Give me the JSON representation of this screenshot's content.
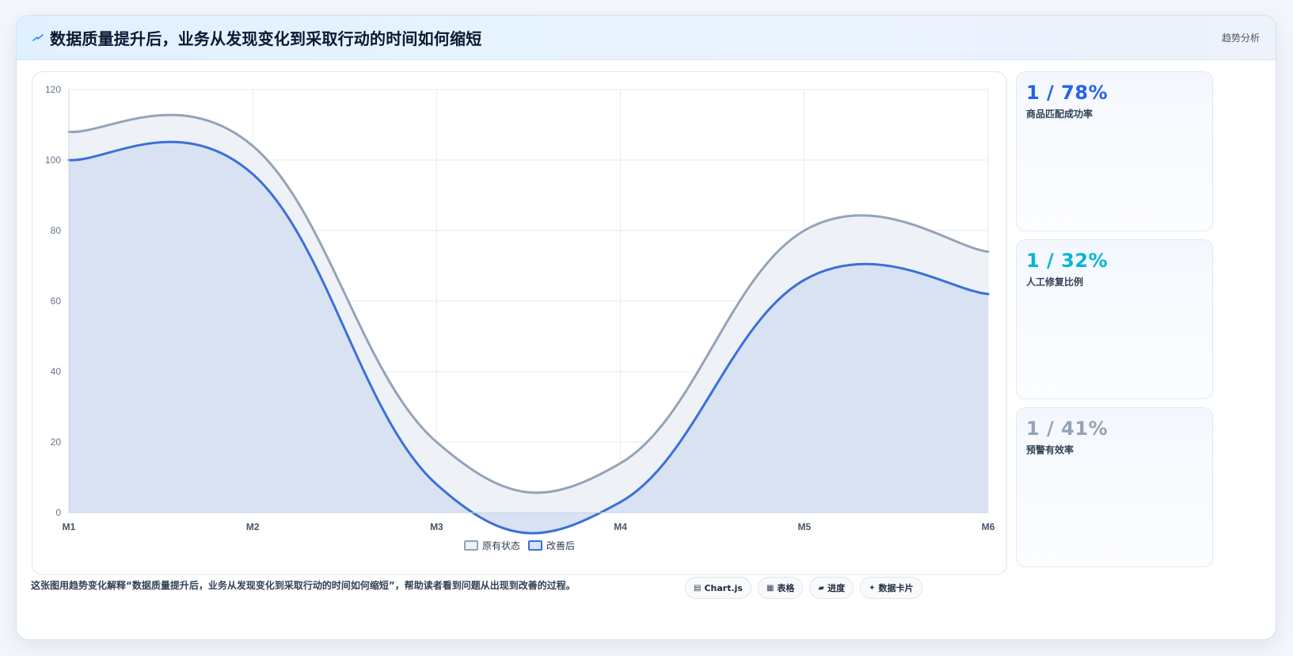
{
  "header": {
    "title": "数据质量提升后，业务从发现变化到采取行动的时间如何缩短",
    "tag": "趋势分析",
    "icon": "bolt-icon"
  },
  "chart_data": {
    "type": "area",
    "x": [
      "M1",
      "M2",
      "M3",
      "M4",
      "M5",
      "M6"
    ],
    "ylim": [
      0,
      120
    ],
    "yticks": [
      0,
      20,
      40,
      60,
      80,
      100,
      120
    ],
    "grid": true,
    "legend_position": "bottom",
    "series": [
      {
        "name": "原有状态",
        "values": [
          108,
          104,
          20,
          14,
          80,
          74
        ],
        "color": "#94a3b8",
        "fill": "#eef2f7"
      },
      {
        "name": "改善后",
        "values": [
          100,
          96,
          8,
          3,
          66,
          62
        ],
        "color": "#3b6fd9",
        "fill": "#d8e2f2"
      }
    ]
  },
  "stats": [
    {
      "value": "1 / 78%",
      "label": "商品匹配成功率",
      "color": "#2563eb"
    },
    {
      "value": "1 / 32%",
      "label": "人工修复比例",
      "color": "#06b6d4"
    },
    {
      "value": "1 / 41%",
      "label": "预警有效率",
      "color": "#94a3b8"
    }
  ],
  "footer": {
    "description": "这张图用趋势变化解释“数据质量提升后，业务从发现变化到采取行动的时间如何缩短”，帮助读者看到问题从出现到改善的过程。",
    "pills": [
      {
        "icon": "▤",
        "label": "Chart.js"
      },
      {
        "icon": "▦",
        "label": "表格"
      },
      {
        "icon": "▰",
        "label": "进度"
      },
      {
        "icon": "✦",
        "label": "数据卡片"
      }
    ]
  }
}
